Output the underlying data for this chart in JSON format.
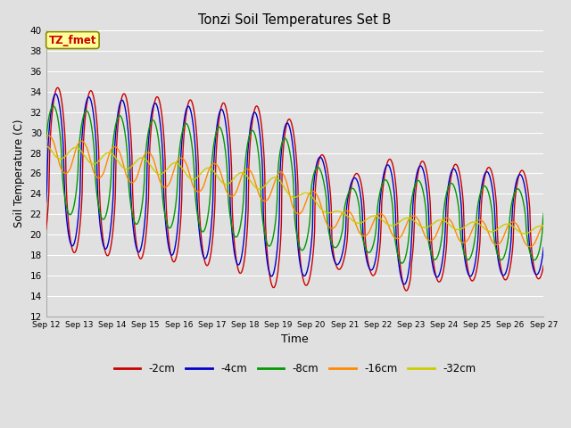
{
  "title": "Tonzi Soil Temperatures Set B",
  "xlabel": "Time",
  "ylabel": "Soil Temperature (C)",
  "ylim": [
    12,
    40
  ],
  "yticks": [
    12,
    14,
    16,
    18,
    20,
    22,
    24,
    26,
    28,
    30,
    32,
    34,
    36,
    38,
    40
  ],
  "colors": {
    "-2cm": "#cc0000",
    "-4cm": "#0000cc",
    "-8cm": "#009900",
    "-16cm": "#ff8800",
    "-32cm": "#cccc00"
  },
  "annotation_text": "TZ_fmet",
  "annotation_color": "#cc0000",
  "annotation_bg": "#ffff99",
  "annotation_border": "#888800",
  "bg_color": "#e0e0e0",
  "grid_color": "#ffffff",
  "start_day": 12,
  "end_day": 27,
  "lw": 1.0
}
